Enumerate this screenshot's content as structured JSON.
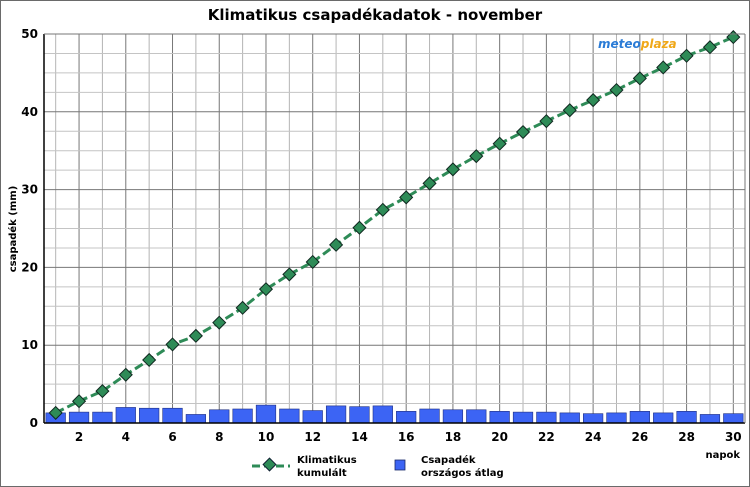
{
  "chart_data": {
    "type": "bar",
    "title": "Klimatikus csapadékadatok - november",
    "xlabel": "napok",
    "ylabel": "csapadék (mm)",
    "ylim": [
      0,
      50
    ],
    "xlim": [
      1,
      30
    ],
    "yticks": [
      0,
      10,
      20,
      30,
      40,
      50
    ],
    "xticks": [
      2,
      4,
      6,
      8,
      10,
      12,
      14,
      16,
      18,
      20,
      22,
      24,
      26,
      28,
      30
    ],
    "grid": true,
    "legend_position": "bottom",
    "x": [
      1,
      2,
      3,
      4,
      5,
      6,
      7,
      8,
      9,
      10,
      11,
      12,
      13,
      14,
      15,
      16,
      17,
      18,
      19,
      20,
      21,
      22,
      23,
      24,
      25,
      26,
      27,
      28,
      29,
      30
    ],
    "series": [
      {
        "name": "Csapadék országos átlag",
        "type": "bar",
        "color": "#3c64f4",
        "values": [
          1.3,
          1.4,
          1.4,
          2.0,
          1.9,
          1.9,
          1.1,
          1.7,
          1.8,
          2.3,
          1.8,
          1.6,
          2.2,
          2.1,
          2.2,
          1.5,
          1.8,
          1.7,
          1.7,
          1.5,
          1.4,
          1.4,
          1.3,
          1.2,
          1.3,
          1.5,
          1.3,
          1.5,
          1.1,
          1.2
        ]
      },
      {
        "name": "Klimatikus kumulált",
        "type": "line",
        "color": "#2e8b57",
        "values": [
          1.3,
          2.8,
          4.1,
          6.2,
          8.1,
          10.1,
          11.2,
          12.9,
          14.8,
          17.2,
          19.1,
          20.7,
          22.9,
          25.1,
          27.4,
          29.0,
          30.8,
          32.6,
          34.3,
          35.9,
          37.4,
          38.8,
          40.2,
          41.5,
          42.8,
          44.3,
          45.7,
          47.2,
          48.3,
          49.6
        ]
      }
    ],
    "legend": [
      {
        "label_lines": [
          "Klimatikus",
          "kumulált"
        ],
        "color": "#2e8b57",
        "marker": "line-diamond"
      },
      {
        "label_lines": [
          "Csapadék",
          "országos átlag"
        ],
        "color": "#3c64f4",
        "marker": "square"
      }
    ],
    "watermark": {
      "part1": "meteo",
      "part2": "plaza"
    }
  }
}
